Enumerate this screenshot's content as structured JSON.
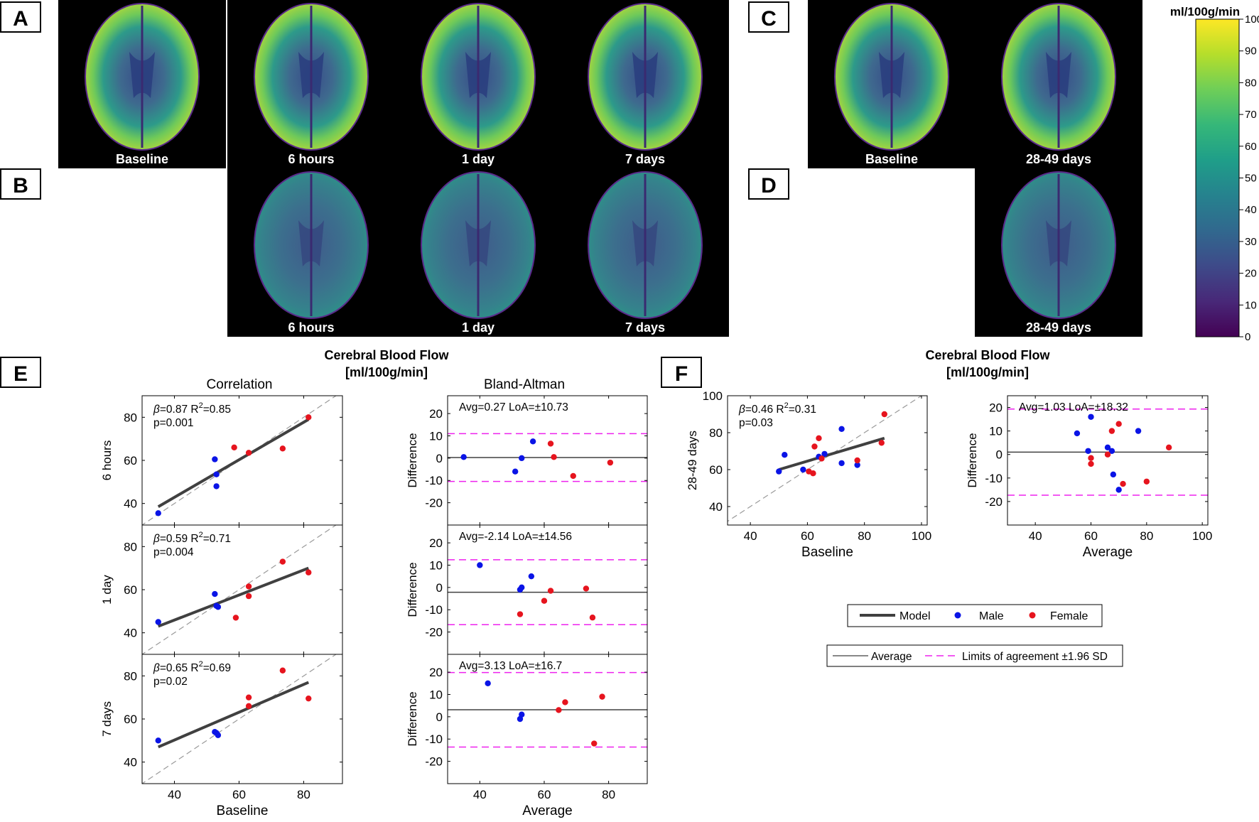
{
  "panel_letters": [
    "A",
    "B",
    "C",
    "D",
    "E",
    "F"
  ],
  "brain_rows": {
    "A": [
      "Baseline",
      "6 hours",
      "1 day",
      "7 days"
    ],
    "B": [
      "6 hours",
      "1 day",
      "7 days"
    ],
    "C": [
      "Baseline",
      "28-49 days"
    ],
    "D": [
      "28-49 days"
    ]
  },
  "colorbar": {
    "unit": "ml/100g/min",
    "ticks": [
      0,
      10,
      20,
      30,
      40,
      50,
      60,
      70,
      80,
      90,
      100
    ],
    "colormap": [
      "#440154",
      "#482878",
      "#3e4a89",
      "#31688e",
      "#26828e",
      "#1f9e89",
      "#35b779",
      "#6ece58",
      "#b5de2b",
      "#fde725"
    ]
  },
  "section_titles": {
    "E": [
      "Cerebral Blood Flow",
      "[ml/100g/min]"
    ],
    "F": [
      "Cerebral Blood Flow",
      "[ml/100g/min]"
    ]
  },
  "column_titles": {
    "correlation": "Correlation",
    "bland_altman": "Bland-Altman"
  },
  "colors": {
    "male": "#0a14e6",
    "female": "#e6141e",
    "model": "#404040",
    "loa": "#ee22ee",
    "identity": "#9a9a9a"
  },
  "legends": {
    "model": {
      "items": [
        "Model",
        "Male",
        "Female"
      ]
    },
    "agreement": {
      "items": [
        "Average",
        "Limits of agreement ±1.96 SD"
      ]
    }
  },
  "chart_data": [
    {
      "id": "E-corr-6h",
      "type": "scatter",
      "ylabel": "6 hours",
      "xlabel": "",
      "xlim": [
        30,
        92
      ],
      "ylim": [
        30,
        90
      ],
      "xticks": [
        40,
        60,
        80
      ],
      "yticks": [
        40,
        60,
        80
      ],
      "stats": {
        "beta": "=0.87 R",
        "r2": "=0.85",
        "p": "p=0.001"
      },
      "series": [
        {
          "name": "Male",
          "points": [
            [
              35,
              35.5
            ],
            [
              52.5,
              60.5
            ],
            [
              53,
              53.5
            ],
            [
              53,
              48
            ]
          ]
        },
        {
          "name": "Female",
          "points": [
            [
              58.5,
              66
            ],
            [
              63,
              63.5
            ],
            [
              73.5,
              65.5
            ],
            [
              81.5,
              80
            ]
          ]
        }
      ],
      "model_line": [
        [
          35,
          38.5
        ],
        [
          81.5,
          79
        ]
      ]
    },
    {
      "id": "E-corr-1d",
      "type": "scatter",
      "ylabel": "1 day",
      "xlabel": "",
      "xlim": [
        30,
        92
      ],
      "ylim": [
        30,
        90
      ],
      "xticks": [
        40,
        60,
        80
      ],
      "yticks": [
        40,
        60,
        80
      ],
      "stats": {
        "beta": "=0.59 R",
        "r2": "=0.71",
        "p": "p=0.004"
      },
      "series": [
        {
          "name": "Male",
          "points": [
            [
              35,
              45
            ],
            [
              52.5,
              58
            ],
            [
              53,
              52.5
            ],
            [
              53.5,
              52
            ]
          ]
        },
        {
          "name": "Female",
          "points": [
            [
              59,
              47
            ],
            [
              63,
              61.5
            ],
            [
              63,
              57
            ],
            [
              73.5,
              73
            ],
            [
              81.5,
              68
            ]
          ]
        }
      ],
      "model_line": [
        [
          35,
          43
        ],
        [
          81.5,
          70
        ]
      ]
    },
    {
      "id": "E-corr-7d",
      "type": "scatter",
      "ylabel": "7 days",
      "xlabel": "Baseline",
      "xlim": [
        30,
        92
      ],
      "ylim": [
        30,
        90
      ],
      "xticks": [
        40,
        60,
        80
      ],
      "yticks": [
        40,
        60,
        80
      ],
      "stats": {
        "beta": "=0.65 R",
        "r2": "=0.69",
        "p": "p=0.02"
      },
      "series": [
        {
          "name": "Male",
          "points": [
            [
              35,
              50
            ],
            [
              52.5,
              54
            ],
            [
              53,
              53.5
            ],
            [
              53.5,
              52.5
            ]
          ]
        },
        {
          "name": "Female",
          "points": [
            [
              63,
              70
            ],
            [
              63,
              66
            ],
            [
              73.5,
              82.5
            ],
            [
              81.5,
              69.5
            ]
          ]
        }
      ],
      "model_line": [
        [
          35,
          47
        ],
        [
          81.5,
          77
        ]
      ]
    },
    {
      "id": "E-ba-6h",
      "type": "scatter",
      "ylabel": "Difference",
      "xlabel": "",
      "xlim": [
        30,
        92
      ],
      "ylim": [
        -30,
        28
      ],
      "xticks": [
        40,
        60,
        80
      ],
      "yticks": [
        -20,
        -10,
        0,
        10,
        20
      ],
      "stats": {
        "text": "Avg=0.27 LoA=±10.73"
      },
      "avg": 0.27,
      "loa": [
        11.0,
        -10.46
      ],
      "series": [
        {
          "name": "Male",
          "points": [
            [
              35,
              0.5
            ],
            [
              51,
              -6
            ],
            [
              53,
              0
            ],
            [
              56.5,
              7.5
            ]
          ]
        },
        {
          "name": "Female",
          "points": [
            [
              62,
              6.5
            ],
            [
              63,
              0.5
            ],
            [
              69,
              -8
            ],
            [
              80.5,
              -2
            ]
          ]
        }
      ]
    },
    {
      "id": "E-ba-1d",
      "type": "scatter",
      "ylabel": "Difference",
      "xlabel": "",
      "xlim": [
        30,
        92
      ],
      "ylim": [
        -30,
        28
      ],
      "xticks": [
        40,
        60,
        80
      ],
      "yticks": [
        -20,
        -10,
        0,
        10,
        20
      ],
      "stats": {
        "text": "Avg=-2.14 LoA=±14.56"
      },
      "avg": -2.14,
      "loa": [
        12.42,
        -16.7
      ],
      "series": [
        {
          "name": "Male",
          "points": [
            [
              40,
              10
            ],
            [
              52.5,
              -1
            ],
            [
              53,
              0
            ],
            [
              56,
              5
            ]
          ]
        },
        {
          "name": "Female",
          "points": [
            [
              52.5,
              -12
            ],
            [
              60,
              -6
            ],
            [
              62,
              -1.5
            ],
            [
              73,
              -0.5
            ],
            [
              75,
              -13.5
            ]
          ]
        }
      ]
    },
    {
      "id": "E-ba-7d",
      "type": "scatter",
      "ylabel": "Difference",
      "xlabel": "Average",
      "xlim": [
        30,
        92
      ],
      "ylim": [
        -30,
        28
      ],
      "xticks": [
        40,
        60,
        80
      ],
      "yticks": [
        -20,
        -10,
        0,
        10,
        20
      ],
      "stats": {
        "text": "Avg=3.13 LoA=±16.7"
      },
      "avg": 3.13,
      "loa": [
        19.83,
        -13.57
      ],
      "series": [
        {
          "name": "Male",
          "points": [
            [
              42.5,
              15
            ],
            [
              52.5,
              -1
            ],
            [
              53,
              1
            ]
          ]
        },
        {
          "name": "Female",
          "points": [
            [
              64.5,
              3
            ],
            [
              66.5,
              6.5
            ],
            [
              75.5,
              -12
            ],
            [
              78,
              9
            ]
          ]
        }
      ]
    },
    {
      "id": "F-corr",
      "type": "scatter",
      "ylabel": "28-49 days",
      "xlabel": "Baseline",
      "xlim": [
        32,
        102
      ],
      "ylim": [
        30,
        100
      ],
      "xticks": [
        40,
        60,
        80,
        100
      ],
      "yticks": [
        40,
        60,
        80,
        100
      ],
      "stats": {
        "beta": "=0.46 R",
        "r2": "=0.31",
        "p": "p=0.03"
      },
      "series": [
        {
          "name": "Male",
          "points": [
            [
              50,
              59
            ],
            [
              52,
              68
            ],
            [
              58.5,
              60
            ],
            [
              64,
              67
            ],
            [
              66,
              68.5
            ],
            [
              72,
              82
            ],
            [
              72,
              63.5
            ],
            [
              77.5,
              62.5
            ]
          ]
        },
        {
          "name": "Female",
          "points": [
            [
              60.5,
              59
            ],
            [
              62,
              58
            ],
            [
              62.5,
              72.5
            ],
            [
              64,
              77
            ],
            [
              65,
              66
            ],
            [
              77.5,
              65
            ],
            [
              86,
              74.5
            ],
            [
              87,
              90
            ]
          ]
        }
      ],
      "model_line": [
        [
          50,
          60
        ],
        [
          87,
          77
        ]
      ]
    },
    {
      "id": "F-ba",
      "type": "scatter",
      "ylabel": "Difference",
      "xlabel": "Average",
      "xlim": [
        30,
        102
      ],
      "ylim": [
        -30,
        25
      ],
      "xticks": [
        40,
        60,
        80,
        100
      ],
      "yticks": [
        -20,
        -10,
        0,
        10,
        20
      ],
      "stats": {
        "text": "Avg=1.03 LoA=±18.32"
      },
      "avg": 1.03,
      "loa": [
        19.35,
        -17.29
      ],
      "series": [
        {
          "name": "Male",
          "points": [
            [
              55,
              9
            ],
            [
              59,
              1.5
            ],
            [
              60,
              16
            ],
            [
              66,
              3
            ],
            [
              67.5,
              1.5
            ],
            [
              68,
              -8.5
            ],
            [
              70,
              -15
            ],
            [
              77,
              10
            ]
          ]
        },
        {
          "name": "Female",
          "points": [
            [
              60,
              -1.5
            ],
            [
              60,
              -4
            ],
            [
              66,
              0
            ],
            [
              67.5,
              10
            ],
            [
              70,
              13
            ],
            [
              71.5,
              -12.5
            ],
            [
              80,
              -11.5
            ],
            [
              88,
              3
            ]
          ]
        }
      ]
    }
  ]
}
